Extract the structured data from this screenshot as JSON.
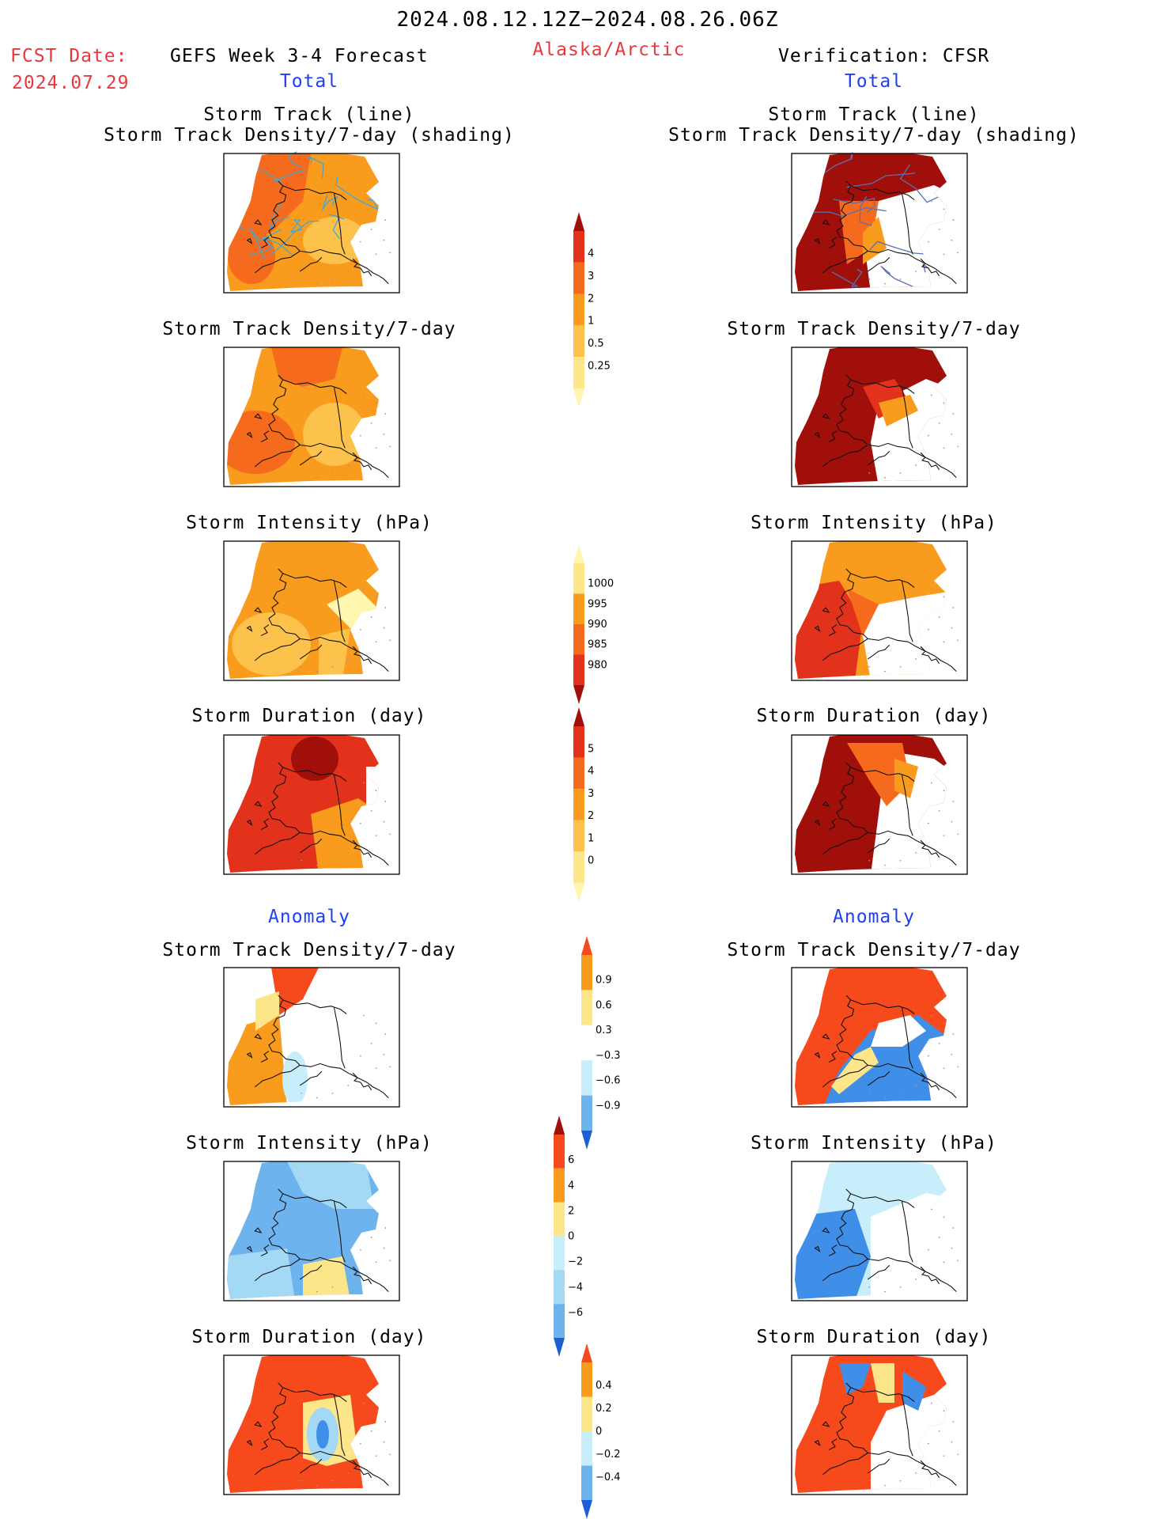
{
  "header": {
    "period": "2024.08.12.12Z−2024.08.26.06Z",
    "fcst_label": "FCST Date:",
    "fcst_date": "2024.07.29",
    "forecast_title": "GEFS Week 3-4 Forecast",
    "region": "Alaska/Arctic",
    "verification": "Verification: CFSR",
    "left_section": "Total",
    "right_section": "Total"
  },
  "anomaly_heading_left": "Anomaly",
  "anomaly_heading_right": "Anomaly",
  "panel_titles": {
    "track_line": "Storm Track (line)",
    "track_shading": "Storm Track Density/7-day (shading)",
    "density": "Storm Track Density/7-day",
    "intensity": "Storm Intensity (hPa)",
    "duration": "Storm Duration (day)"
  },
  "colors": {
    "title_red": "#e8383d",
    "title_blue": "#1f3ff0",
    "track_line": "#3ea9d8",
    "palette_warm": [
      "#fff7b0",
      "#fde58a",
      "#fcc24c",
      "#f99b1d",
      "#f66a1d",
      "#e3321c",
      "#a10f0b"
    ],
    "palette_cool": [
      "#c8eefb",
      "#a4d9f5",
      "#6db4ee",
      "#3f8ee8",
      "#1f5fd6"
    ]
  },
  "colorbars": [
    {
      "name": "track-density-total",
      "labels": [
        "4",
        "3",
        "2",
        "1",
        "0.5",
        "0.25"
      ],
      "colors": [
        "#a10f0b",
        "#e3321c",
        "#f66a1d",
        "#f99b1d",
        "#fcc24c",
        "#fde58a",
        "#fff7b0"
      ]
    },
    {
      "name": "intensity-total",
      "labels": [
        "1000",
        "995",
        "990",
        "985",
        "980"
      ],
      "colors": [
        "#fff7b0",
        "#fde58a",
        "#f99b1d",
        "#f66a1d",
        "#e3321c",
        "#a10f0b"
      ]
    },
    {
      "name": "duration-total",
      "labels": [
        "5",
        "4",
        "3",
        "2",
        "1",
        "0"
      ],
      "colors": [
        "#a10f0b",
        "#e3321c",
        "#f66a1d",
        "#f99b1d",
        "#fcc24c",
        "#fde58a",
        "#fff7b0"
      ]
    },
    {
      "name": "density-anomaly",
      "labels": [
        "0.9",
        "0.6",
        "0.3",
        "−0.3",
        "−0.6",
        "−0.9"
      ],
      "colors": [
        "#f64a1d",
        "#f99b1d",
        "#fde58a",
        "#ffffff",
        "#c8eefb",
        "#6db4ee",
        "#1f5fd6"
      ]
    },
    {
      "name": "intensity-anomaly",
      "labels": [
        "6",
        "4",
        "2",
        "0",
        "−2",
        "−4",
        "−6"
      ],
      "colors": [
        "#a10f0b",
        "#f64a1d",
        "#f99b1d",
        "#fde58a",
        "#c8eefb",
        "#a4d9f5",
        "#6db4ee",
        "#1f5fd6"
      ]
    },
    {
      "name": "duration-anomaly",
      "labels": [
        "0.4",
        "0.2",
        "0",
        "−0.2",
        "−0.4"
      ],
      "colors": [
        "#f64a1d",
        "#f99b1d",
        "#fde58a",
        "#c8eefb",
        "#6db4ee",
        "#1f5fd6"
      ]
    }
  ]
}
